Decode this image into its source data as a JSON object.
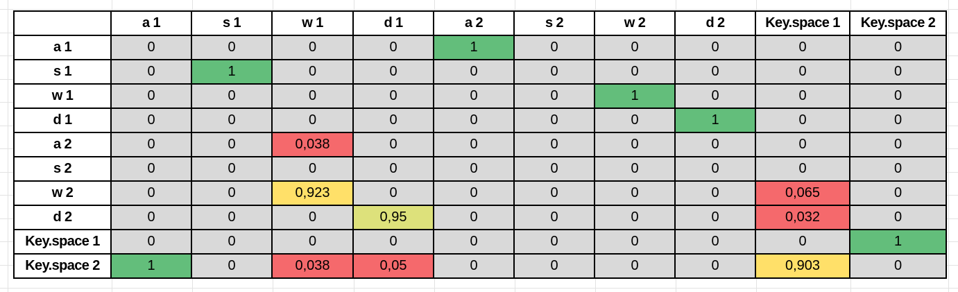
{
  "colors": {
    "gray": "#d9d9d9",
    "green": "#63be7b",
    "red": "#f5696c",
    "yellow": "#ffe069",
    "yellow_green": "#dde17b",
    "border": "#000000",
    "grid": "#e2e2e2"
  },
  "table": {
    "corner": "",
    "column_headers": [
      "a 1",
      "s 1",
      "w 1",
      "d 1",
      "a 2",
      "s 2",
      "w 2",
      "d 2",
      "Key.space 1",
      "Key.space 2"
    ],
    "rows": [
      {
        "label": "a 1",
        "cells": [
          {
            "value": "0",
            "bg": "gray"
          },
          {
            "value": "0",
            "bg": "gray"
          },
          {
            "value": "0",
            "bg": "gray"
          },
          {
            "value": "0",
            "bg": "gray"
          },
          {
            "value": "1",
            "bg": "green"
          },
          {
            "value": "0",
            "bg": "gray"
          },
          {
            "value": "0",
            "bg": "gray"
          },
          {
            "value": "0",
            "bg": "gray"
          },
          {
            "value": "0",
            "bg": "gray"
          },
          {
            "value": "0",
            "bg": "gray"
          }
        ]
      },
      {
        "label": "s 1",
        "cells": [
          {
            "value": "0",
            "bg": "gray"
          },
          {
            "value": "1",
            "bg": "green"
          },
          {
            "value": "0",
            "bg": "gray"
          },
          {
            "value": "0",
            "bg": "gray"
          },
          {
            "value": "0",
            "bg": "gray"
          },
          {
            "value": "0",
            "bg": "gray"
          },
          {
            "value": "0",
            "bg": "gray"
          },
          {
            "value": "0",
            "bg": "gray"
          },
          {
            "value": "0",
            "bg": "gray"
          },
          {
            "value": "0",
            "bg": "gray"
          }
        ]
      },
      {
        "label": "w 1",
        "cells": [
          {
            "value": "0",
            "bg": "gray"
          },
          {
            "value": "0",
            "bg": "gray"
          },
          {
            "value": "0",
            "bg": "gray"
          },
          {
            "value": "0",
            "bg": "gray"
          },
          {
            "value": "0",
            "bg": "gray"
          },
          {
            "value": "0",
            "bg": "gray"
          },
          {
            "value": "1",
            "bg": "green"
          },
          {
            "value": "0",
            "bg": "gray"
          },
          {
            "value": "0",
            "bg": "gray"
          },
          {
            "value": "0",
            "bg": "gray"
          }
        ]
      },
      {
        "label": "d 1",
        "cells": [
          {
            "value": "0",
            "bg": "gray"
          },
          {
            "value": "0",
            "bg": "gray"
          },
          {
            "value": "0",
            "bg": "gray"
          },
          {
            "value": "0",
            "bg": "gray"
          },
          {
            "value": "0",
            "bg": "gray"
          },
          {
            "value": "0",
            "bg": "gray"
          },
          {
            "value": "0",
            "bg": "gray"
          },
          {
            "value": "1",
            "bg": "green"
          },
          {
            "value": "0",
            "bg": "gray"
          },
          {
            "value": "0",
            "bg": "gray"
          }
        ]
      },
      {
        "label": "a 2",
        "cells": [
          {
            "value": "0",
            "bg": "gray"
          },
          {
            "value": "0",
            "bg": "gray"
          },
          {
            "value": "0,038",
            "bg": "red"
          },
          {
            "value": "0",
            "bg": "gray"
          },
          {
            "value": "0",
            "bg": "gray"
          },
          {
            "value": "0",
            "bg": "gray"
          },
          {
            "value": "0",
            "bg": "gray"
          },
          {
            "value": "0",
            "bg": "gray"
          },
          {
            "value": "0",
            "bg": "gray"
          },
          {
            "value": "0",
            "bg": "gray"
          }
        ]
      },
      {
        "label": "s 2",
        "cells": [
          {
            "value": "0",
            "bg": "gray"
          },
          {
            "value": "0",
            "bg": "gray"
          },
          {
            "value": "0",
            "bg": "gray"
          },
          {
            "value": "0",
            "bg": "gray"
          },
          {
            "value": "0",
            "bg": "gray"
          },
          {
            "value": "0",
            "bg": "gray"
          },
          {
            "value": "0",
            "bg": "gray"
          },
          {
            "value": "0",
            "bg": "gray"
          },
          {
            "value": "0",
            "bg": "gray"
          },
          {
            "value": "0",
            "bg": "gray"
          }
        ]
      },
      {
        "label": "w 2",
        "cells": [
          {
            "value": "0",
            "bg": "gray"
          },
          {
            "value": "0",
            "bg": "gray"
          },
          {
            "value": "0,923",
            "bg": "yellow"
          },
          {
            "value": "0",
            "bg": "gray"
          },
          {
            "value": "0",
            "bg": "gray"
          },
          {
            "value": "0",
            "bg": "gray"
          },
          {
            "value": "0",
            "bg": "gray"
          },
          {
            "value": "0",
            "bg": "gray"
          },
          {
            "value": "0,065",
            "bg": "red"
          },
          {
            "value": "0",
            "bg": "gray"
          }
        ]
      },
      {
        "label": "d 2",
        "cells": [
          {
            "value": "0",
            "bg": "gray"
          },
          {
            "value": "0",
            "bg": "gray"
          },
          {
            "value": "0",
            "bg": "gray"
          },
          {
            "value": "0,95",
            "bg": "yellow_green"
          },
          {
            "value": "0",
            "bg": "gray"
          },
          {
            "value": "0",
            "bg": "gray"
          },
          {
            "value": "0",
            "bg": "gray"
          },
          {
            "value": "0",
            "bg": "gray"
          },
          {
            "value": "0,032",
            "bg": "red"
          },
          {
            "value": "0",
            "bg": "gray"
          }
        ]
      },
      {
        "label": "Key.space 1",
        "cells": [
          {
            "value": "0",
            "bg": "gray"
          },
          {
            "value": "0",
            "bg": "gray"
          },
          {
            "value": "0",
            "bg": "gray"
          },
          {
            "value": "0",
            "bg": "gray"
          },
          {
            "value": "0",
            "bg": "gray"
          },
          {
            "value": "0",
            "bg": "gray"
          },
          {
            "value": "0",
            "bg": "gray"
          },
          {
            "value": "0",
            "bg": "gray"
          },
          {
            "value": "0",
            "bg": "gray"
          },
          {
            "value": "1",
            "bg": "green"
          }
        ]
      },
      {
        "label": "Key.space 2",
        "cells": [
          {
            "value": "1",
            "bg": "green"
          },
          {
            "value": "0",
            "bg": "gray"
          },
          {
            "value": "0,038",
            "bg": "red"
          },
          {
            "value": "0,05",
            "bg": "red"
          },
          {
            "value": "0",
            "bg": "gray"
          },
          {
            "value": "0",
            "bg": "gray"
          },
          {
            "value": "0",
            "bg": "gray"
          },
          {
            "value": "0",
            "bg": "gray"
          },
          {
            "value": "0,903",
            "bg": "yellow"
          },
          {
            "value": "0",
            "bg": "gray"
          }
        ]
      }
    ]
  }
}
